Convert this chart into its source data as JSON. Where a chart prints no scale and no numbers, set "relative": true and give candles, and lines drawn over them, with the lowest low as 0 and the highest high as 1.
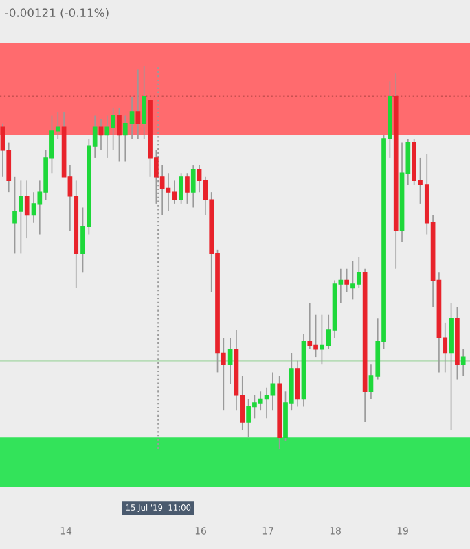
{
  "chart_data": {
    "type": "candlestick",
    "relative": true,
    "tick_labels": "x",
    "grid": false,
    "annotations": [
      "-0.00121 (-0.11%)",
      "15 Jul '19  11:00"
    ],
    "xlim": [
      13.02,
      20.0
    ],
    "xticks": [
      14,
      16,
      17,
      18,
      19
    ],
    "x": [
      13.06,
      13.15,
      13.24,
      13.33,
      13.42,
      13.52,
      13.61,
      13.7,
      13.79,
      13.88,
      13.97,
      14.06,
      14.15,
      14.25,
      14.34,
      14.43,
      14.52,
      14.61,
      14.7,
      14.79,
      14.88,
      14.98,
      15.07,
      15.16,
      15.25,
      15.34,
      15.43,
      15.52,
      15.61,
      15.71,
      15.8,
      15.89,
      15.98,
      16.07,
      16.16,
      16.25,
      16.34,
      16.44,
      16.53,
      16.62,
      16.71,
      16.8,
      16.89,
      16.98,
      17.07,
      17.17,
      17.26,
      17.35,
      17.44,
      17.53,
      17.62,
      17.71,
      17.8,
      17.9,
      17.99,
      18.08,
      18.17,
      18.26,
      18.35,
      18.44,
      18.53,
      18.63,
      18.72,
      18.81,
      18.9,
      18.99,
      19.08,
      19.17,
      19.26,
      19.36,
      19.45,
      19.54,
      19.63,
      19.72,
      19.81,
      19.9
    ],
    "ohlc": [
      [
        0.84,
        0.85,
        0.71,
        0.78
      ],
      [
        0.78,
        0.8,
        0.67,
        0.7
      ],
      [
        0.59,
        0.71,
        0.51,
        0.62
      ],
      [
        0.62,
        0.7,
        0.51,
        0.66
      ],
      [
        0.66,
        0.7,
        0.55,
        0.61
      ],
      [
        0.61,
        0.67,
        0.59,
        0.64
      ],
      [
        0.64,
        0.7,
        0.56,
        0.67
      ],
      [
        0.67,
        0.78,
        0.65,
        0.76
      ],
      [
        0.76,
        0.87,
        0.72,
        0.83
      ],
      [
        0.83,
        0.88,
        0.81,
        0.84
      ],
      [
        0.84,
        0.88,
        0.71,
        0.71
      ],
      [
        0.71,
        0.74,
        0.57,
        0.66
      ],
      [
        0.66,
        0.7,
        0.42,
        0.51
      ],
      [
        0.51,
        0.63,
        0.46,
        0.58
      ],
      [
        0.58,
        0.81,
        0.56,
        0.79
      ],
      [
        0.79,
        0.87,
        0.76,
        0.84
      ],
      [
        0.84,
        0.86,
        0.78,
        0.82
      ],
      [
        0.82,
        0.87,
        0.76,
        0.84
      ],
      [
        0.84,
        0.89,
        0.78,
        0.87
      ],
      [
        0.87,
        0.89,
        0.75,
        0.82
      ],
      [
        0.82,
        0.87,
        0.75,
        0.85
      ],
      [
        0.85,
        0.92,
        0.81,
        0.88
      ],
      [
        0.88,
        0.99,
        0.81,
        0.85
      ],
      [
        0.85,
        1.0,
        0.81,
        0.92
      ],
      [
        0.91,
        0.91,
        0.71,
        0.76
      ],
      [
        0.76,
        0.78,
        0.64,
        0.71
      ],
      [
        0.71,
        0.74,
        0.61,
        0.68
      ],
      [
        0.68,
        0.72,
        0.62,
        0.67
      ],
      [
        0.67,
        0.7,
        0.64,
        0.65
      ],
      [
        0.65,
        0.72,
        0.64,
        0.71
      ],
      [
        0.71,
        0.72,
        0.64,
        0.67
      ],
      [
        0.67,
        0.74,
        0.63,
        0.73
      ],
      [
        0.73,
        0.74,
        0.67,
        0.7
      ],
      [
        0.7,
        0.71,
        0.61,
        0.65
      ],
      [
        0.65,
        0.67,
        0.41,
        0.51
      ],
      [
        0.51,
        0.52,
        0.2,
        0.25
      ],
      [
        0.25,
        0.29,
        0.1,
        0.22
      ],
      [
        0.22,
        0.29,
        0.17,
        0.26
      ],
      [
        0.26,
        0.31,
        0.1,
        0.14
      ],
      [
        0.14,
        0.19,
        0.05,
        0.07
      ],
      [
        0.07,
        0.13,
        0.03,
        0.11
      ],
      [
        0.11,
        0.14,
        0.08,
        0.12
      ],
      [
        0.12,
        0.15,
        0.1,
        0.13
      ],
      [
        0.13,
        0.16,
        0.08,
        0.14
      ],
      [
        0.14,
        0.2,
        0.1,
        0.17
      ],
      [
        0.17,
        0.19,
        0.0,
        0.03
      ],
      [
        0.03,
        0.15,
        0.02,
        0.12
      ],
      [
        0.12,
        0.25,
        0.1,
        0.21
      ],
      [
        0.21,
        0.23,
        0.11,
        0.13
      ],
      [
        0.13,
        0.3,
        0.11,
        0.28
      ],
      [
        0.28,
        0.38,
        0.26,
        0.27
      ],
      [
        0.27,
        0.35,
        0.24,
        0.26
      ],
      [
        0.26,
        0.35,
        0.22,
        0.27
      ],
      [
        0.27,
        0.35,
        0.26,
        0.31
      ],
      [
        0.31,
        0.44,
        0.29,
        0.43
      ],
      [
        0.43,
        0.47,
        0.38,
        0.44
      ],
      [
        0.44,
        0.47,
        0.41,
        0.43
      ],
      [
        0.42,
        0.49,
        0.39,
        0.43
      ],
      [
        0.43,
        0.5,
        0.42,
        0.46
      ],
      [
        0.46,
        0.47,
        0.07,
        0.15
      ],
      [
        0.15,
        0.22,
        0.13,
        0.19
      ],
      [
        0.19,
        0.34,
        0.18,
        0.28
      ],
      [
        0.28,
        0.82,
        0.26,
        0.81
      ],
      [
        0.81,
        0.96,
        0.76,
        0.92
      ],
      [
        0.92,
        0.98,
        0.47,
        0.57
      ],
      [
        0.57,
        0.8,
        0.54,
        0.72
      ],
      [
        0.72,
        0.81,
        0.69,
        0.8
      ],
      [
        0.8,
        0.81,
        0.69,
        0.7
      ],
      [
        0.7,
        0.76,
        0.64,
        0.69
      ],
      [
        0.69,
        0.77,
        0.56,
        0.59
      ],
      [
        0.59,
        0.61,
        0.37,
        0.44
      ],
      [
        0.44,
        0.46,
        0.2,
        0.29
      ],
      [
        0.29,
        0.33,
        0.2,
        0.25
      ],
      [
        0.25,
        0.38,
        0.05,
        0.34
      ],
      [
        0.34,
        0.37,
        0.18,
        0.22
      ],
      [
        0.22,
        0.26,
        0.19,
        0.24
      ]
    ],
    "colors": [
      "#e8232b",
      "#e8232b",
      "#1ed83a",
      "#1ed83a",
      "#e8232b",
      "#1ed83a",
      "#1ed83a",
      "#1ed83a",
      "#1ed83a",
      "#1ed83a",
      "#e8232b",
      "#e8232b",
      "#e8232b",
      "#1ed83a",
      "#1ed83a",
      "#1ed83a",
      "#e8232b",
      "#1ed83a",
      "#1ed83a",
      "#e8232b",
      "#1ed83a",
      "#1ed83a",
      "#e8232b",
      "#1ed83a",
      "#e8232b",
      "#e8232b",
      "#e8232b",
      "#e8232b",
      "#e8232b",
      "#1ed83a",
      "#e8232b",
      "#1ed83a",
      "#e8232b",
      "#e8232b",
      "#e8232b",
      "#e8232b",
      "#e8232b",
      "#1ed83a",
      "#e8232b",
      "#e8232b",
      "#1ed83a",
      "#1ed83a",
      "#1ed83a",
      "#1ed83a",
      "#1ed83a",
      "#e8232b",
      "#1ed83a",
      "#1ed83a",
      "#e8232b",
      "#1ed83a",
      "#e8232b",
      "#e8232b",
      "#1ed83a",
      "#1ed83a",
      "#1ed83a",
      "#1ed83a",
      "#e8232b",
      "#1ed83a",
      "#1ed83a",
      "#e8232b",
      "#1ed83a",
      "#1ed83a",
      "#1ed83a",
      "#1ed83a",
      "#e8232b",
      "#1ed83a",
      "#1ed83a",
      "#e8232b",
      "#e8232b",
      "#e8232b",
      "#e8232b",
      "#e8232b",
      "#e8232b",
      "#1ed83a",
      "#e8232b",
      "#1ed83a"
    ],
    "bands": [
      {
        "axis": "y",
        "from": 0.82,
        "to": 1.06,
        "color": "#ff6b6e"
      },
      {
        "axis": "y",
        "from": -0.1,
        "to": 0.03,
        "color": "#33e35a"
      }
    ],
    "ref_lines": [
      {
        "axis": "x",
        "value": 15.37,
        "line_style": "dotted",
        "color": "#9a9a9a"
      },
      {
        "axis": "y",
        "value": 0.92,
        "line_style": "dotted",
        "color": "#c85050"
      },
      {
        "axis": "y",
        "value": 0.23,
        "line_style": "solid",
        "color": "#b8dcb8"
      }
    ]
  }
}
